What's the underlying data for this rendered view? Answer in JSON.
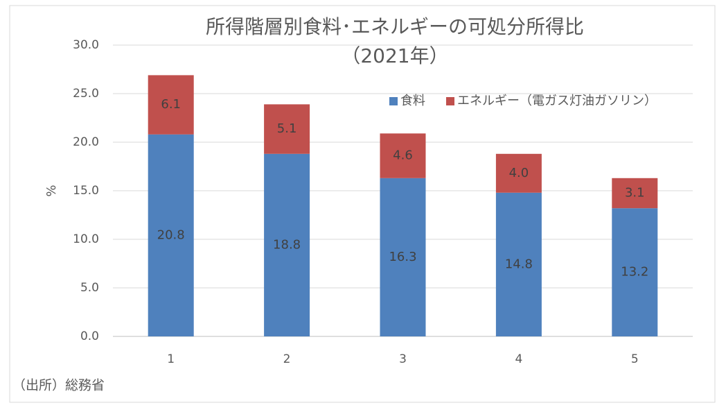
{
  "chart_data": {
    "type": "stacked-bar",
    "title": "所得階層別食料･エネルギーの可処分所得比",
    "subtitle": "（2021年）",
    "y_label": "%",
    "source": "（出所）総務省",
    "categories": [
      "1",
      "2",
      "3",
      "4",
      "5"
    ],
    "series": [
      {
        "name": "食料",
        "color": "#4f81bd",
        "values": [
          20.8,
          18.8,
          16.3,
          14.8,
          13.2
        ],
        "value_labels": [
          "20.8",
          "18.8",
          "16.3",
          "14.8",
          "13.2"
        ]
      },
      {
        "name": "エネルギー（電ガス灯油ガソリン）",
        "color": "#c0504d",
        "values": [
          6.1,
          5.1,
          4.6,
          4.0,
          3.1
        ],
        "value_labels": [
          "6.1",
          "5.1",
          "4.6",
          "4.0",
          "3.1"
        ]
      }
    ],
    "ylim": [
      0,
      30
    ],
    "yticks": [
      {
        "value": 0,
        "label": "0.0"
      },
      {
        "value": 5,
        "label": "5.0"
      },
      {
        "value": 10,
        "label": "10.0"
      },
      {
        "value": 15,
        "label": "15.0"
      },
      {
        "value": 20,
        "label": "20.0"
      },
      {
        "value": 25,
        "label": "25.0"
      },
      {
        "value": 30,
        "label": "30.0"
      }
    ],
    "grid": true,
    "legend": "top-right"
  }
}
